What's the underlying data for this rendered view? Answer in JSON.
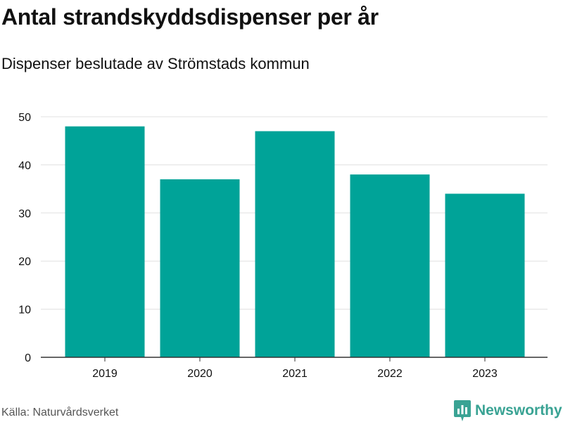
{
  "header": {
    "title": "Antal strandskyddsdispenser per år",
    "subtitle": "Dispenser beslutade av Strömstads kommun"
  },
  "footer": {
    "source": "Källa: Naturvårdsverket",
    "brand_name": "Newsworthy",
    "brand_icon": "bar-chart-bubble-icon"
  },
  "colors": {
    "bar": "#00a398",
    "grid": "#e0e0e0",
    "axis": "#333333",
    "text": "#111111",
    "brand": "#3aa394"
  },
  "chart_data": {
    "type": "bar",
    "title": "Antal strandskyddsdispenser per år",
    "subtitle": "Dispenser beslutade av Strömstads kommun",
    "categories": [
      "2019",
      "2020",
      "2021",
      "2022",
      "2023"
    ],
    "values": [
      48,
      37,
      47,
      38,
      34
    ],
    "xlabel": "",
    "ylabel": "",
    "ylim": [
      0,
      50
    ],
    "yticks": [
      0,
      10,
      20,
      30,
      40,
      50
    ],
    "grid": true,
    "legend": "none"
  }
}
